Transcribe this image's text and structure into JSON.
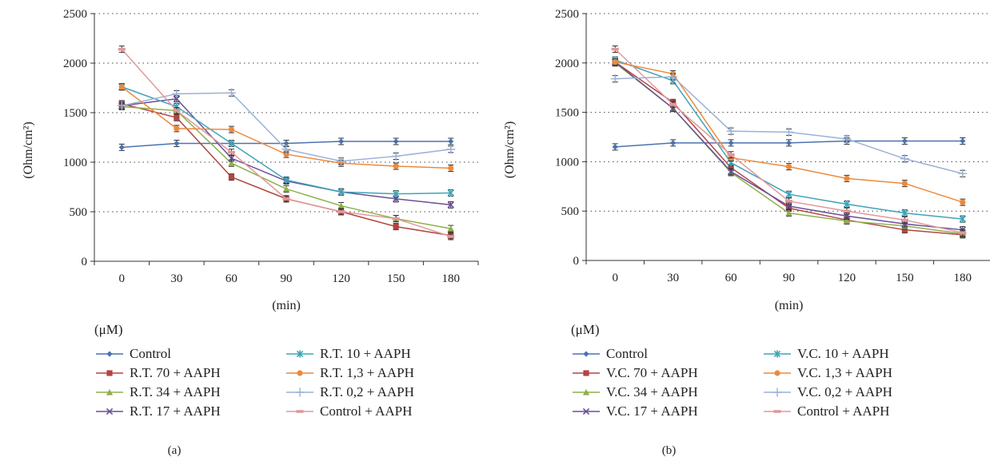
{
  "colors": {
    "Control": "#4a72b0",
    "70": "#b24542",
    "34": "#8eb04b",
    "17": "#6a4f98",
    "10": "#3fa3b8",
    "1,3": "#ec8a3c",
    "0,2": "#9cb1d6",
    "ControlAAPH": "#e0999a"
  },
  "chart_data": [
    {
      "type": "line",
      "panel_label": "(a)",
      "xlabel": "(min)",
      "ylabel": "(Ohm/cm²)",
      "legend_unit": "(μM)",
      "x": [
        0,
        30,
        60,
        90,
        120,
        150,
        180
      ],
      "ylim": [
        0,
        2500
      ],
      "yticks": [
        0,
        500,
        1000,
        1500,
        2000,
        2500
      ],
      "grid": "horizontal dotted",
      "legend": "bottom, two columns",
      "series": [
        {
          "name": "Control",
          "key": "Control",
          "marker": "diamond",
          "values": [
            1150,
            1190,
            1190,
            1190,
            1210,
            1210,
            1210
          ]
        },
        {
          "name": "R.T. 70 + AAPH",
          "key": "70",
          "marker": "square",
          "values": [
            1590,
            1450,
            850,
            630,
            500,
            350,
            260
          ]
        },
        {
          "name": "R.T. 34 + AAPH",
          "key": "34",
          "marker": "triangle",
          "values": [
            1560,
            1520,
            990,
            730,
            560,
            430,
            330
          ]
        },
        {
          "name": "R.T. 17 + AAPH",
          "key": "17",
          "marker": "x",
          "values": [
            1570,
            1640,
            1040,
            810,
            700,
            630,
            570
          ]
        },
        {
          "name": "R.T. 10 + AAPH",
          "key": "10",
          "marker": "asterisk",
          "values": [
            1760,
            1560,
            1190,
            820,
            700,
            680,
            690
          ]
        },
        {
          "name": "R.T. 1,3 + AAPH",
          "key": "1,3",
          "marker": "circle",
          "values": [
            1760,
            1340,
            1330,
            1080,
            990,
            960,
            940
          ]
        },
        {
          "name": "R.T. 0,2 + AAPH",
          "key": "0,2",
          "marker": "plus",
          "values": [
            1570,
            1690,
            1700,
            1130,
            1010,
            1060,
            1130
          ]
        },
        {
          "name": "Control + AAPH",
          "key": "ControlAAPH",
          "marker": "dash",
          "values": [
            2140,
            1520,
            1100,
            630,
            500,
            430,
            250
          ]
        }
      ]
    },
    {
      "type": "line",
      "panel_label": "(b)",
      "xlabel": "(min)",
      "ylabel": "(Ohm/cm²)",
      "legend_unit": "(μM)",
      "x": [
        0,
        30,
        60,
        90,
        120,
        150,
        180
      ],
      "ylim": [
        0,
        2500
      ],
      "yticks": [
        0,
        500,
        1000,
        1500,
        2000,
        2500
      ],
      "grid": "horizontal dotted",
      "legend": "bottom, two columns",
      "series": [
        {
          "name": "Control",
          "key": "Control",
          "marker": "diamond",
          "values": [
            1150,
            1190,
            1190,
            1190,
            1210,
            1210,
            1210
          ]
        },
        {
          "name": "V.C. 70 + AAPH",
          "key": "70",
          "marker": "square",
          "values": [
            2010,
            1600,
            940,
            530,
            410,
            310,
            260
          ]
        },
        {
          "name": "V.C. 34 + AAPH",
          "key": "34",
          "marker": "triangle",
          "values": [
            2000,
            1540,
            890,
            480,
            400,
            350,
            270
          ]
        },
        {
          "name": "V.C. 17 + AAPH",
          "key": "17",
          "marker": "x",
          "values": [
            2010,
            1540,
            900,
            550,
            450,
            370,
            310
          ]
        },
        {
          "name": "V.C. 10 + AAPH",
          "key": "10",
          "marker": "asterisk",
          "values": [
            2030,
            1820,
            990,
            670,
            570,
            480,
            420
          ]
        },
        {
          "name": "V.C. 1,3 + AAPH",
          "key": "1,3",
          "marker": "circle",
          "values": [
            2010,
            1890,
            1040,
            950,
            830,
            780,
            590
          ]
        },
        {
          "name": "V.C. 0,2 + AAPH",
          "key": "0,2",
          "marker": "plus",
          "values": [
            1840,
            1860,
            1310,
            1300,
            1230,
            1030,
            880
          ]
        },
        {
          "name": "Control + AAPH",
          "key": "ControlAAPH",
          "marker": "dash",
          "values": [
            2140,
            1580,
            1070,
            600,
            500,
            410,
            280
          ]
        }
      ]
    }
  ]
}
